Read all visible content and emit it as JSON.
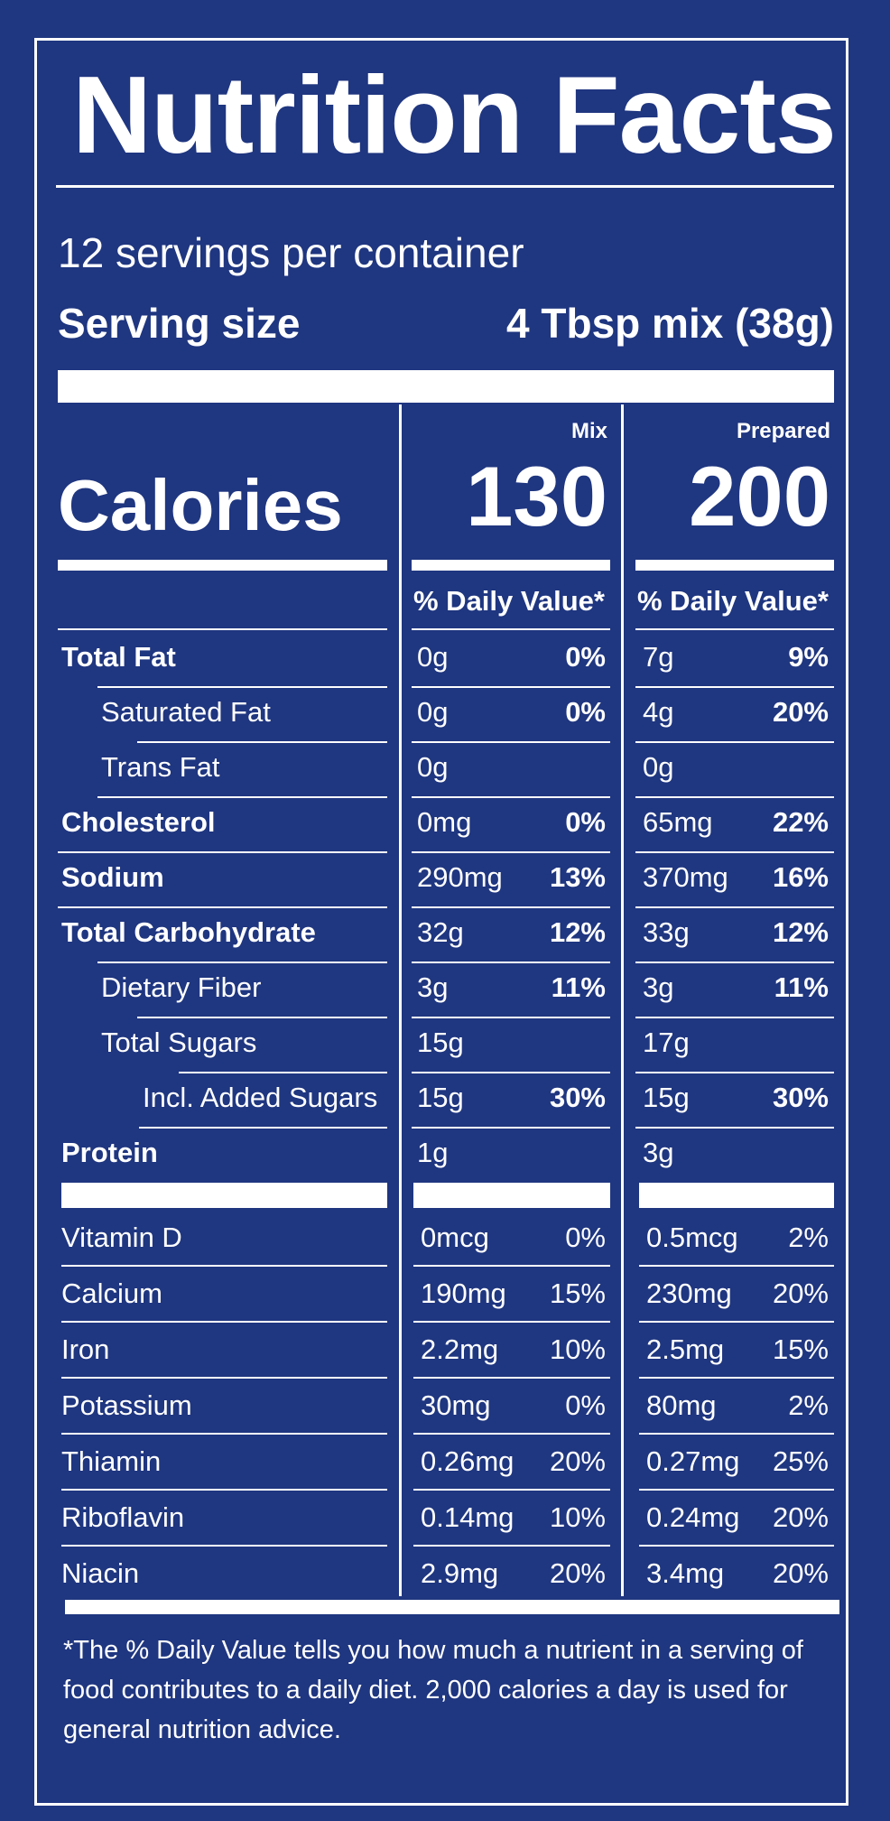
{
  "title": "Nutrition Facts",
  "servings_per_container": "12 servings per container",
  "serving_size_label": "Serving size",
  "serving_size_value": "4 Tbsp mix (38g)",
  "calories_label": "Calories",
  "columns": [
    {
      "header": "Mix",
      "calories": "130",
      "dv_header": "% Daily Value*"
    },
    {
      "header": "Prepared",
      "calories": "200",
      "dv_header": "% Daily Value*"
    }
  ],
  "nutrients": [
    {
      "label": "Total Fat",
      "bold": true,
      "indent": 0,
      "mix_amt": "0g",
      "mix_pct": "0%",
      "prep_amt": "7g",
      "prep_pct": "9%"
    },
    {
      "label": "Saturated Fat",
      "bold": false,
      "indent": 1,
      "mix_amt": "0g",
      "mix_pct": "0%",
      "prep_amt": "4g",
      "prep_pct": "20%"
    },
    {
      "label": "Trans Fat",
      "bold": false,
      "indent": 1,
      "mix_amt": "0g",
      "mix_pct": "",
      "prep_amt": "0g",
      "prep_pct": ""
    },
    {
      "label": "Cholesterol",
      "bold": true,
      "indent": 0,
      "mix_amt": "0mg",
      "mix_pct": "0%",
      "prep_amt": "65mg",
      "prep_pct": "22%"
    },
    {
      "label": "Sodium",
      "bold": true,
      "indent": 0,
      "mix_amt": "290mg",
      "mix_pct": "13%",
      "prep_amt": "370mg",
      "prep_pct": "16%"
    },
    {
      "label": "Total Carbohydrate",
      "bold": true,
      "indent": 0,
      "mix_amt": "32g",
      "mix_pct": "12%",
      "prep_amt": "33g",
      "prep_pct": "12%"
    },
    {
      "label": "Dietary Fiber",
      "bold": false,
      "indent": 1,
      "mix_amt": "3g",
      "mix_pct": "11%",
      "prep_amt": "3g",
      "prep_pct": "11%"
    },
    {
      "label": "Total Sugars",
      "bold": false,
      "indent": 1,
      "mix_amt": "15g",
      "mix_pct": "",
      "prep_amt": "17g",
      "prep_pct": ""
    },
    {
      "label": "Incl. Added Sugars",
      "bold": false,
      "indent": 2,
      "mix_amt": "15g",
      "mix_pct": "30%",
      "prep_amt": "15g",
      "prep_pct": "30%"
    },
    {
      "label": "Protein",
      "bold": true,
      "indent": 0,
      "mix_amt": "1g",
      "mix_pct": "",
      "prep_amt": "3g",
      "prep_pct": ""
    }
  ],
  "vitamins": [
    {
      "label": "Vitamin D",
      "mix_amt": "0mcg",
      "mix_pct": "0%",
      "prep_amt": "0.5mcg",
      "prep_pct": "2%"
    },
    {
      "label": "Calcium",
      "mix_amt": "190mg",
      "mix_pct": "15%",
      "prep_amt": "230mg",
      "prep_pct": "20%"
    },
    {
      "label": "Iron",
      "mix_amt": "2.2mg",
      "mix_pct": "10%",
      "prep_amt": "2.5mg",
      "prep_pct": "15%"
    },
    {
      "label": "Potassium",
      "mix_amt": "30mg",
      "mix_pct": "0%",
      "prep_amt": "80mg",
      "prep_pct": "2%"
    },
    {
      "label": "Thiamin",
      "mix_amt": "0.26mg",
      "mix_pct": "20%",
      "prep_amt": "0.27mg",
      "prep_pct": "25%"
    },
    {
      "label": "Riboflavin",
      "mix_amt": "0.14mg",
      "mix_pct": "10%",
      "prep_amt": "0.24mg",
      "prep_pct": "20%"
    },
    {
      "label": "Niacin",
      "mix_amt": "2.9mg",
      "mix_pct": "20%",
      "prep_amt": "3.4mg",
      "prep_pct": "20%"
    }
  ],
  "footnote": "*The % Daily Value tells you how much a nutrient in a serving of food contributes to a daily diet. 2,000 calories a day is used for general nutrition advice.",
  "colors": {
    "background": "#1f3680",
    "text": "#ffffff"
  }
}
